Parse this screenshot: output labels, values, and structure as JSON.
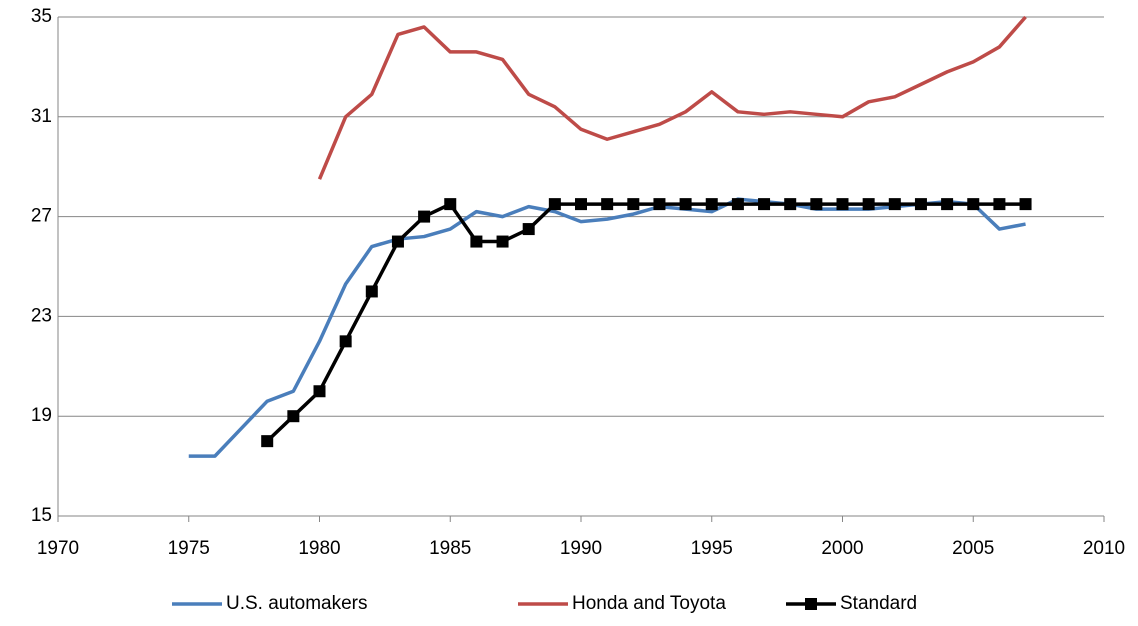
{
  "chart_data": {
    "type": "line",
    "x": [
      1975,
      1976,
      1977,
      1978,
      1979,
      1980,
      1981,
      1982,
      1983,
      1984,
      1985,
      1986,
      1987,
      1988,
      1989,
      1990,
      1991,
      1992,
      1993,
      1994,
      1995,
      1996,
      1997,
      1998,
      1999,
      2000,
      2001,
      2002,
      2003,
      2004,
      2005,
      2006,
      2007
    ],
    "series": [
      {
        "name": "U.S. automakers",
        "color": "#4a7ebb",
        "values": [
          17.4,
          17.4,
          18.5,
          19.6,
          20.0,
          22.0,
          24.3,
          25.8,
          26.1,
          26.2,
          26.5,
          27.2,
          27.0,
          27.4,
          27.2,
          26.8,
          26.9,
          27.1,
          27.4,
          27.3,
          27.2,
          27.7,
          27.6,
          27.5,
          27.3,
          27.3,
          27.3,
          27.4,
          27.5,
          27.6,
          27.5,
          26.5,
          26.7
        ]
      },
      {
        "name": "Honda and Toyota",
        "color": "#be4b48",
        "values": [
          null,
          null,
          null,
          null,
          null,
          28.5,
          31.0,
          31.9,
          34.3,
          34.6,
          33.6,
          33.6,
          33.3,
          31.9,
          31.4,
          30.5,
          30.1,
          30.4,
          30.7,
          31.2,
          32.0,
          31.2,
          31.1,
          31.2,
          31.1,
          31.0,
          31.6,
          31.8,
          32.3,
          32.8,
          33.2,
          33.8,
          35.0
        ]
      },
      {
        "name": "Standard",
        "color": "#000000",
        "marker": "square",
        "values": [
          null,
          null,
          null,
          18,
          19,
          20,
          22,
          24,
          26,
          27,
          27.5,
          26,
          26,
          26.5,
          27.5,
          27.5,
          27.5,
          27.5,
          27.5,
          27.5,
          27.5,
          27.5,
          27.5,
          27.5,
          27.5,
          27.5,
          27.5,
          27.5,
          27.5,
          27.5,
          27.5,
          27.5,
          27.5
        ]
      }
    ],
    "xlim": [
      1970,
      2010
    ],
    "xticks": [
      1970,
      1975,
      1980,
      1985,
      1990,
      1995,
      2000,
      2005,
      2010
    ],
    "ylim": [
      15,
      35
    ],
    "yticks": [
      15,
      19,
      23,
      27,
      31,
      35
    ],
    "grid": true,
    "legend": "bottom"
  }
}
